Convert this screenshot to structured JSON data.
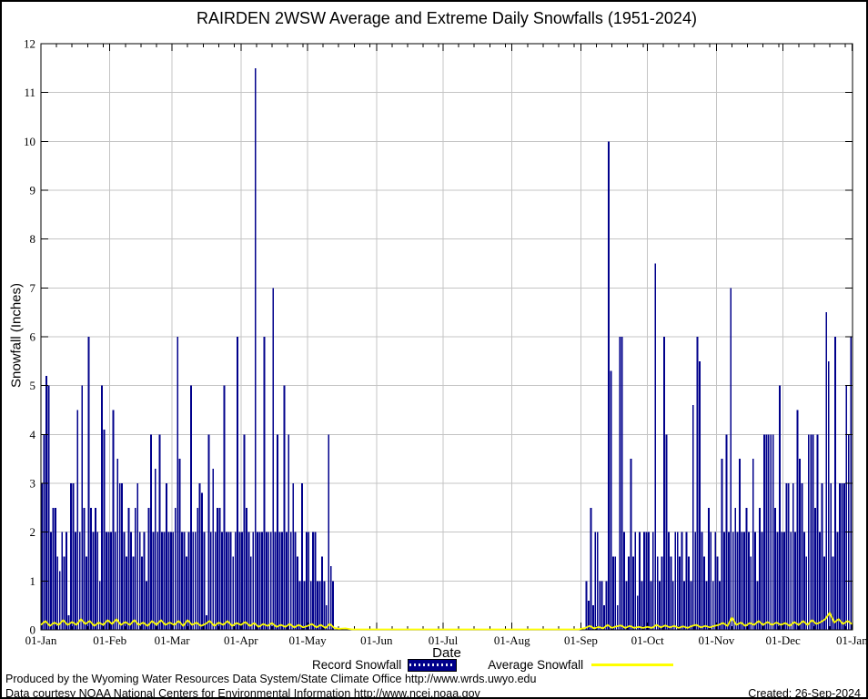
{
  "title": "RAIRDEN 2WSW Average and Extreme Daily Snowfalls (1951-2024)",
  "axes": {
    "y_label": "Snowfall (Inches)",
    "x_label": "Date",
    "y_ticks": [
      0,
      1,
      2,
      3,
      4,
      5,
      6,
      7,
      8,
      9,
      10,
      11,
      12
    ],
    "x_tick_labels": [
      "01-Jan",
      "01-Feb",
      "01-Mar",
      "01-Apr",
      "01-May",
      "01-Jun",
      "01-Jul",
      "01-Aug",
      "01-Sep",
      "01-Oct",
      "01-Nov",
      "01-Dec",
      "01-Jan"
    ],
    "y_range": [
      0,
      12
    ],
    "grid": "on"
  },
  "legend": {
    "record_label": "Record Snowfall",
    "average_label": "Average Snowfall",
    "position": "bottom-center"
  },
  "footer": {
    "line1": "Produced by the Wyoming Water Resources Data System/State Climate Office http://www.wrds.uwyo.edu",
    "line2": "Data courtesy NOAA National Centers for Environmental Information http://www.ncei.noaa.gov",
    "created": "Created: 26-Sep-2024"
  },
  "colors": {
    "record_bar": "#00008b",
    "average_line": "#ffff00",
    "grid": "#c4c4c4",
    "axis": "#000000",
    "background": "#ffffff"
  },
  "chart_data": {
    "type": "bar",
    "title": "RAIRDEN 2WSW Average and Extreme Daily Snowfalls (1951-2024)",
    "xlabel": "Date",
    "ylabel": "Snowfall (Inches)",
    "ylim": [
      0,
      12
    ],
    "x_unit": "day_of_year",
    "x_range_days": [
      1,
      366
    ],
    "month_start_days": [
      1,
      32,
      60,
      91,
      121,
      152,
      182,
      213,
      244,
      274,
      305,
      335,
      366
    ],
    "series": [
      {
        "name": "Record Snowfall",
        "type": "bar",
        "note": "one bar per day of year, inches, values estimated from plot",
        "values": [
          3,
          4,
          5.2,
          5,
          2,
          2.5,
          2.5,
          1.5,
          1.2,
          2,
          1.5,
          2,
          0.3,
          3,
          3,
          2,
          4.5,
          2,
          5,
          2.5,
          1.5,
          6,
          2.5,
          2,
          2.5,
          2,
          1,
          5,
          4.1,
          2,
          2,
          2,
          4.5,
          2,
          3.5,
          3,
          3,
          2,
          1.5,
          2.5,
          2,
          1.5,
          2.5,
          3,
          2,
          1.5,
          2,
          1,
          2.5,
          4,
          2,
          3.3,
          2,
          4,
          2,
          2,
          3,
          2,
          2,
          2,
          2.5,
          6,
          3.5,
          2,
          2,
          1.5,
          2,
          5,
          2,
          2,
          2.5,
          3,
          2.8,
          2,
          0.3,
          4,
          2,
          3.3,
          2,
          2.5,
          2.5,
          2,
          5,
          2,
          2,
          2,
          1.5,
          2,
          6,
          2,
          2,
          4,
          2.5,
          2,
          1.5,
          2,
          11.5,
          2,
          2,
          2,
          6,
          2,
          2,
          2,
          7,
          2,
          4,
          2,
          2,
          5,
          2,
          4,
          2,
          3,
          2,
          1.5,
          1,
          3,
          1,
          2,
          2,
          1,
          2,
          2,
          1,
          1,
          1.5,
          1,
          0.5,
          4,
          1.3,
          1,
          0,
          0,
          0,
          0,
          0,
          0,
          0,
          0,
          0,
          0,
          0,
          0,
          0,
          0,
          0,
          0,
          0,
          0,
          0,
          0,
          0,
          0,
          0,
          0,
          0,
          0,
          0,
          0,
          0,
          0,
          0,
          0,
          0,
          0,
          0,
          0,
          0,
          0,
          0,
          0,
          0,
          0,
          0,
          0,
          0,
          0,
          0,
          0,
          0,
          0,
          0,
          0,
          0,
          0,
          0,
          0,
          0,
          0,
          0,
          0,
          0,
          0,
          0,
          0,
          0,
          0,
          0,
          0,
          0,
          0,
          0,
          0,
          0,
          0,
          0,
          0,
          0,
          0,
          0,
          0,
          0,
          0,
          0,
          0,
          0,
          0,
          0,
          0,
          0,
          0,
          0,
          0,
          0,
          0,
          0,
          0,
          0,
          0,
          0,
          0,
          0,
          0,
          0,
          0,
          0,
          0,
          0,
          0,
          0,
          0,
          0,
          0,
          0,
          1,
          0.6,
          2.5,
          0.5,
          2,
          2,
          1,
          1,
          0.5,
          1,
          10,
          5.3,
          1.5,
          1.5,
          0.5,
          6,
          6,
          2,
          1,
          1.5,
          3.5,
          1.5,
          2,
          0.7,
          2,
          1,
          2,
          2,
          2,
          1,
          2,
          7.5,
          1.5,
          1,
          1.5,
          6,
          4,
          2,
          1.5,
          1,
          2,
          2,
          1.5,
          2,
          1,
          2,
          1.5,
          1,
          4.6,
          2,
          6,
          5.5,
          2,
          1.5,
          1,
          2.5,
          2,
          1,
          2,
          1.5,
          1,
          3.5,
          2,
          4,
          2,
          7,
          2,
          2.5,
          2,
          3.5,
          2,
          2,
          2.5,
          2,
          1.5,
          3.5,
          2,
          1,
          2.5,
          2,
          4,
          4,
          4,
          4,
          4,
          2.5,
          2,
          5,
          2,
          2,
          3,
          3,
          2,
          3,
          2,
          4.5,
          3.5,
          3,
          2,
          1.5,
          4,
          4,
          4,
          2.5,
          4,
          2,
          3,
          1.5,
          6.5,
          5.5,
          3,
          1.5,
          6,
          2,
          3,
          3,
          3,
          5,
          4,
          6
        ]
      },
      {
        "name": "Average Snowfall",
        "type": "line",
        "note": "[day_of_year, inches] control points estimated from plot",
        "points": [
          [
            1,
            0.1
          ],
          [
            3,
            0.18
          ],
          [
            5,
            0.08
          ],
          [
            7,
            0.15
          ],
          [
            9,
            0.1
          ],
          [
            11,
            0.2
          ],
          [
            13,
            0.1
          ],
          [
            15,
            0.16
          ],
          [
            17,
            0.1
          ],
          [
            19,
            0.22
          ],
          [
            21,
            0.12
          ],
          [
            23,
            0.18
          ],
          [
            25,
            0.08
          ],
          [
            27,
            0.15
          ],
          [
            29,
            0.1
          ],
          [
            31,
            0.2
          ],
          [
            33,
            0.12
          ],
          [
            35,
            0.22
          ],
          [
            37,
            0.1
          ],
          [
            39,
            0.16
          ],
          [
            41,
            0.1
          ],
          [
            43,
            0.2
          ],
          [
            45,
            0.1
          ],
          [
            47,
            0.15
          ],
          [
            49,
            0.08
          ],
          [
            51,
            0.18
          ],
          [
            53,
            0.1
          ],
          [
            55,
            0.2
          ],
          [
            57,
            0.1
          ],
          [
            59,
            0.15
          ],
          [
            61,
            0.1
          ],
          [
            63,
            0.18
          ],
          [
            65,
            0.08
          ],
          [
            67,
            0.2
          ],
          [
            69,
            0.1
          ],
          [
            71,
            0.15
          ],
          [
            73,
            0.08
          ],
          [
            75,
            0.12
          ],
          [
            77,
            0.18
          ],
          [
            79,
            0.08
          ],
          [
            81,
            0.15
          ],
          [
            83,
            0.1
          ],
          [
            85,
            0.18
          ],
          [
            87,
            0.08
          ],
          [
            89,
            0.14
          ],
          [
            91,
            0.1
          ],
          [
            93,
            0.16
          ],
          [
            95,
            0.08
          ],
          [
            97,
            0.14
          ],
          [
            99,
            0.06
          ],
          [
            101,
            0.12
          ],
          [
            103,
            0.08
          ],
          [
            105,
            0.14
          ],
          [
            107,
            0.06
          ],
          [
            109,
            0.1
          ],
          [
            111,
            0.06
          ],
          [
            113,
            0.12
          ],
          [
            115,
            0.05
          ],
          [
            117,
            0.1
          ],
          [
            119,
            0.05
          ],
          [
            121,
            0.08
          ],
          [
            123,
            0.12
          ],
          [
            125,
            0.05
          ],
          [
            127,
            0.1
          ],
          [
            129,
            0.04
          ],
          [
            131,
            0.12
          ],
          [
            133,
            0.04
          ],
          [
            135,
            0.02
          ],
          [
            138,
            0.03
          ],
          [
            141,
            0.01
          ],
          [
            145,
            0.01
          ],
          [
            155,
            0.01
          ],
          [
            165,
            0.01
          ],
          [
            175,
            0.01
          ],
          [
            185,
            0.01
          ],
          [
            195,
            0.01
          ],
          [
            205,
            0.01
          ],
          [
            215,
            0.01
          ],
          [
            225,
            0.01
          ],
          [
            235,
            0.01
          ],
          [
            243,
            0.01
          ],
          [
            246,
            0.04
          ],
          [
            248,
            0.08
          ],
          [
            250,
            0.03
          ],
          [
            252,
            0.06
          ],
          [
            254,
            0.03
          ],
          [
            256,
            0.1
          ],
          [
            258,
            0.04
          ],
          [
            260,
            0.07
          ],
          [
            262,
            0.09
          ],
          [
            264,
            0.04
          ],
          [
            266,
            0.08
          ],
          [
            268,
            0.04
          ],
          [
            270,
            0.06
          ],
          [
            272,
            0.04
          ],
          [
            274,
            0.06
          ],
          [
            276,
            0.04
          ],
          [
            278,
            0.1
          ],
          [
            280,
            0.05
          ],
          [
            282,
            0.09
          ],
          [
            284,
            0.05
          ],
          [
            286,
            0.08
          ],
          [
            288,
            0.04
          ],
          [
            290,
            0.07
          ],
          [
            292,
            0.04
          ],
          [
            294,
            0.08
          ],
          [
            296,
            0.1
          ],
          [
            298,
            0.05
          ],
          [
            300,
            0.08
          ],
          [
            302,
            0.05
          ],
          [
            304,
            0.08
          ],
          [
            306,
            0.1
          ],
          [
            308,
            0.14
          ],
          [
            310,
            0.08
          ],
          [
            312,
            0.25
          ],
          [
            314,
            0.1
          ],
          [
            316,
            0.15
          ],
          [
            318,
            0.08
          ],
          [
            320,
            0.14
          ],
          [
            322,
            0.1
          ],
          [
            324,
            0.18
          ],
          [
            326,
            0.1
          ],
          [
            328,
            0.16
          ],
          [
            330,
            0.1
          ],
          [
            332,
            0.15
          ],
          [
            334,
            0.1
          ],
          [
            336,
            0.14
          ],
          [
            338,
            0.08
          ],
          [
            340,
            0.16
          ],
          [
            342,
            0.1
          ],
          [
            344,
            0.18
          ],
          [
            346,
            0.1
          ],
          [
            348,
            0.2
          ],
          [
            350,
            0.12
          ],
          [
            352,
            0.16
          ],
          [
            354,
            0.22
          ],
          [
            356,
            0.35
          ],
          [
            358,
            0.15
          ],
          [
            360,
            0.22
          ],
          [
            362,
            0.12
          ],
          [
            364,
            0.18
          ],
          [
            366,
            0.12
          ]
        ]
      }
    ]
  }
}
